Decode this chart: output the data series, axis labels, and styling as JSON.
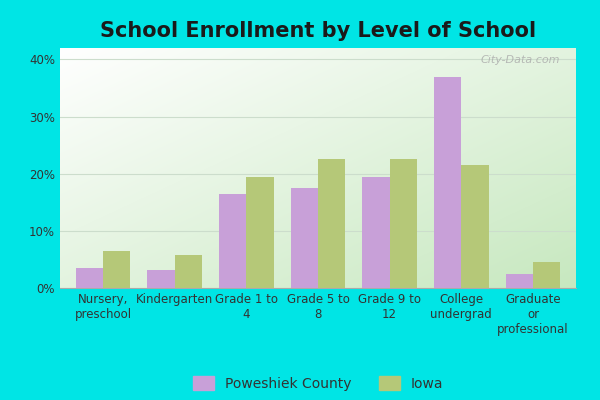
{
  "title": "School Enrollment by Level of School",
  "categories": [
    "Nursery,\npreschool",
    "Kindergarten",
    "Grade 1 to\n4",
    "Grade 5 to\n8",
    "Grade 9 to\n12",
    "College\nundergrad",
    "Graduate\nor\nprofessional"
  ],
  "poweshiek": [
    3.5,
    3.2,
    16.5,
    17.5,
    19.5,
    37.0,
    2.5
  ],
  "iowa": [
    6.5,
    5.7,
    19.5,
    22.5,
    22.5,
    21.5,
    4.5
  ],
  "poweshiek_color": "#c8a0d8",
  "iowa_color": "#b5c878",
  "outer_bg": "#00e5e5",
  "ylim": [
    0,
    42
  ],
  "yticks": [
    0,
    10,
    20,
    30,
    40
  ],
  "legend_labels": [
    "Poweshiek County",
    "Iowa"
  ],
  "bar_width": 0.38,
  "title_fontsize": 15,
  "tick_fontsize": 8.5,
  "legend_fontsize": 10,
  "watermark": "City-Data.com"
}
